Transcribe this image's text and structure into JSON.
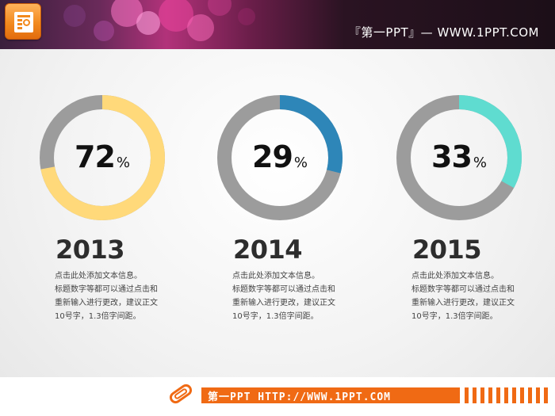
{
  "header": {
    "title": "『第一PPT』— WWW.1PPT.COM",
    "logo_icon": "presentation-logo-icon"
  },
  "colors": {
    "track": "#9c9c9c",
    "donut_2013": "#ffd97a",
    "donut_2014": "#2e86b8",
    "donut_2015": "#5fdcd0",
    "accent": "#f06a14"
  },
  "chart_data": [
    {
      "type": "pie",
      "year": "2013",
      "value": 72,
      "label": "72",
      "unit": "%"
    },
    {
      "type": "pie",
      "year": "2014",
      "value": 29,
      "label": "29",
      "unit": "%"
    },
    {
      "type": "pie",
      "year": "2015",
      "value": 33,
      "label": "33",
      "unit": "%"
    }
  ],
  "columns": [
    {
      "year": "2013",
      "value_text": "72",
      "unit": "%",
      "lines": [
        "点击此处添加文本信息。",
        "标题数字等都可以通过点击和",
        "重新输入进行更改，建议正文",
        "10号字，1.3倍字间距。"
      ]
    },
    {
      "year": "2014",
      "value_text": "29",
      "unit": "%",
      "lines": [
        "点击此处添加文本信息。",
        "标题数字等都可以通过点击和",
        "重新输入进行更改，建议正文",
        "10号字，1.3倍字间距。"
      ]
    },
    {
      "year": "2015",
      "value_text": "33",
      "unit": "%",
      "lines": [
        "点击此处添加文本信息。",
        "标题数字等都可以通过点击和",
        "重新输入进行更改，建议正文",
        "10号字，1.3倍字间距。"
      ]
    }
  ],
  "footer": {
    "text": "第一PPT HTTP://WWW.1PPT.COM",
    "icon": "paperclip-icon"
  }
}
